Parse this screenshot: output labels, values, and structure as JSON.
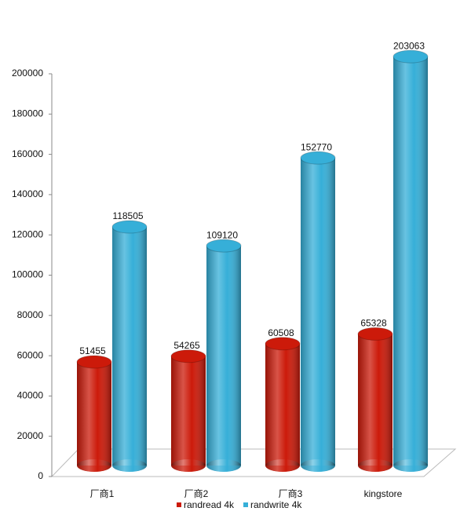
{
  "chart_data": {
    "type": "bar3d",
    "categories": [
      "厂商1",
      "厂商2",
      "厂商3",
      "kingstore"
    ],
    "series": [
      {
        "name": "randread 4k",
        "color": "#cc1a0a",
        "values": [
          51455,
          54265,
          60508,
          65328
        ]
      },
      {
        "name": "randwrite 4k",
        "color": "#36afd8",
        "values": [
          118505,
          109120,
          152770,
          203063
        ]
      }
    ],
    "ylim": [
      0,
      200000
    ],
    "yticks": [
      0,
      20000,
      40000,
      60000,
      80000,
      100000,
      120000,
      140000,
      160000,
      180000,
      200000
    ],
    "legend": "bottom"
  }
}
